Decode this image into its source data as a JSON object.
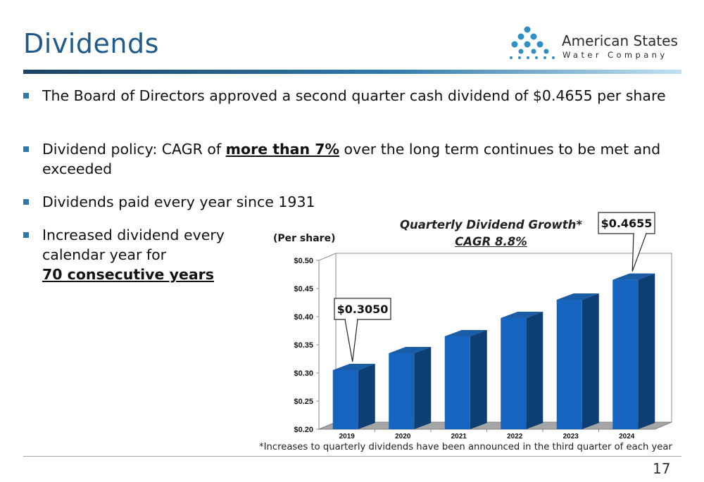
{
  "slide": {
    "title": "Dividends",
    "page_number": "17",
    "footnote": "*Increases to quarterly dividends have been announced in the third quarter of each year"
  },
  "logo": {
    "name": "American States",
    "subtitle": "Water Company",
    "color": "#2f8fc4"
  },
  "bullets": [
    {
      "text": "The Board of Directors approved a second quarter cash dividend of $0.4655 per share"
    },
    {
      "before": "Dividend policy: CAGR of ",
      "emph": "more than 7%",
      "after": " over the long term continues to be met and exceeded"
    },
    {
      "text": "Dividends paid every year since 1931"
    },
    {
      "before": "Increased dividend every calendar year for",
      "emph": "70 consecutive years"
    }
  ],
  "chart_data": {
    "type": "bar",
    "title": "Quarterly Dividend Growth*",
    "subtitle": "CAGR 8.8%",
    "ylabel": "(Per share)",
    "categories": [
      "2019",
      "2020",
      "2021",
      "2022",
      "2023",
      "2024"
    ],
    "values": [
      0.305,
      0.335,
      0.365,
      0.3975,
      0.43,
      0.4655
    ],
    "ylim": [
      0.2,
      0.5
    ],
    "yticks": [
      "$0.20",
      "$0.25",
      "$0.30",
      "$0.35",
      "$0.40",
      "$0.45",
      "$0.50"
    ],
    "annotations": [
      {
        "label": "$0.3050",
        "category": "2019"
      },
      {
        "label": "$0.4655",
        "category": "2024"
      }
    ],
    "bar_color": "#1565c0",
    "grid": false
  }
}
